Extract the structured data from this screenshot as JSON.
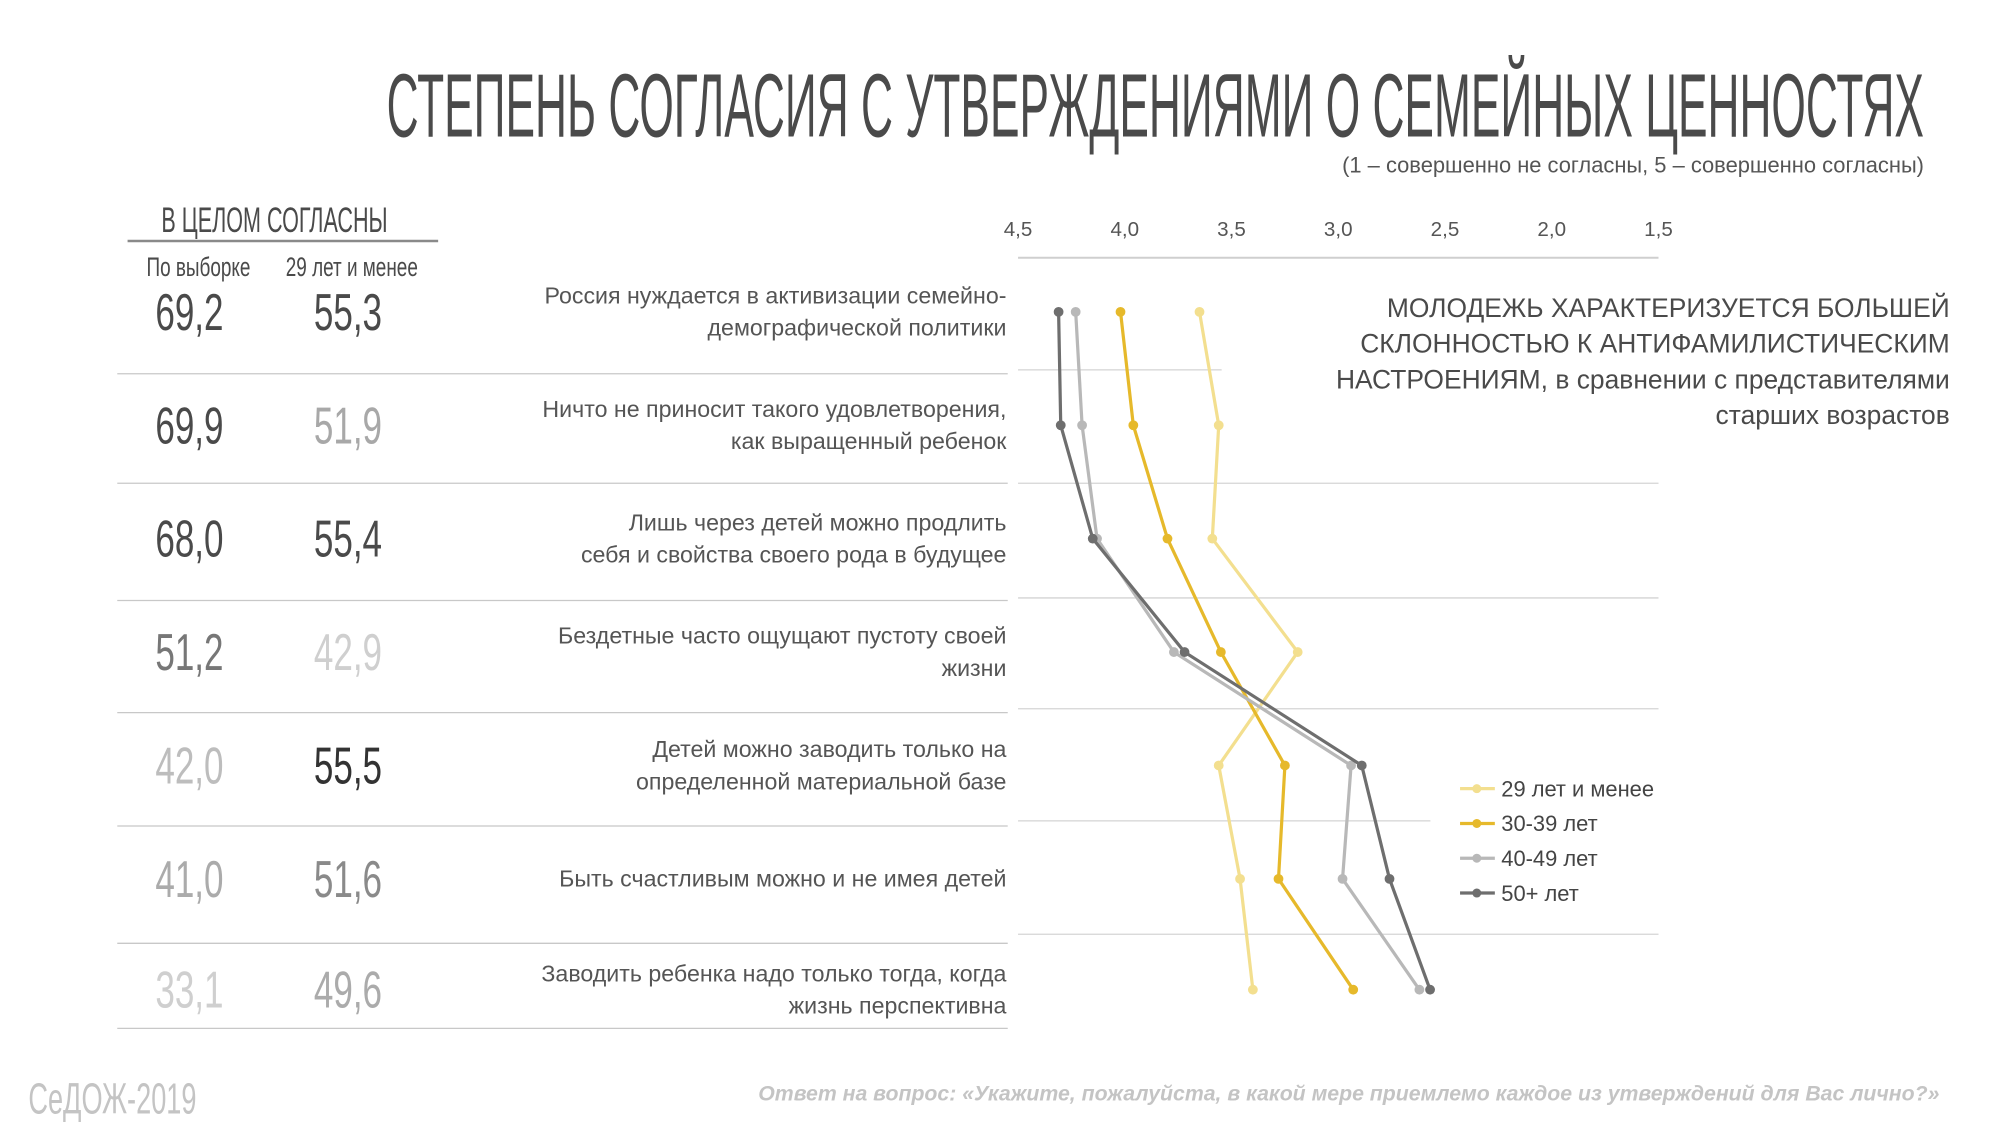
{
  "title": "СТЕПЕНЬ СОГЛАСИЯ С УТВЕРЖДЕНИЯМИ О СЕМЕЙНЫХ ЦЕННОСТЯХ",
  "subtitle": "(1 – совершенно не согласны,  5 – совершенно согласны)",
  "table": {
    "header": "В ЦЕЛОМ СОГЛАСНЫ",
    "columns": [
      "По выборке",
      "29 лет и менее"
    ],
    "rows": [
      [
        "69,2",
        "55,3"
      ],
      [
        "69,9",
        "51,9"
      ],
      [
        "68,0",
        "55,4"
      ],
      [
        "51,2",
        "42,9"
      ],
      [
        "42,0",
        "55,5"
      ],
      [
        "41,0",
        "51,6"
      ],
      [
        "33,1",
        "49,6"
      ]
    ],
    "colors": [
      [
        "#4a4a4a",
        "#4a4a4a"
      ],
      [
        "#4a4a4a",
        "#a8a8a8"
      ],
      [
        "#4a4a4a",
        "#4a4a4a"
      ],
      [
        "#777777",
        "#cfcfcf"
      ],
      [
        "#bdbdbd",
        "#333333"
      ],
      [
        "#ababab",
        "#8a8a8a"
      ],
      [
        "#cfcfcf",
        "#ababab"
      ]
    ]
  },
  "chart_data": {
    "type": "line",
    "categories": [
      [
        "Россия нуждается в активизации семейно-",
        "демографической политики"
      ],
      [
        "Ничто не приносит такого удовлетворения,",
        "как выращенный ребенок"
      ],
      [
        "Лишь через детей можно продлить",
        "себя и свойства своего рода в будущее"
      ],
      [
        "Бездетные часто ощущают пустоту своей",
        "жизни"
      ],
      [
        "Детей можно заводить только на",
        "определенной материальной базе"
      ],
      [
        "Быть счастливым можно и не имея детей"
      ],
      [
        "Заводить ребенка надо только тогда, когда",
        "жизнь перспективна"
      ]
    ],
    "xlim": [
      4.5,
      1.5
    ],
    "xticks": [
      {
        "value": 4.5,
        "label": "4,5"
      },
      {
        "value": 4,
        "label": "4,0"
      },
      {
        "value": 3.5,
        "label": "3,5"
      },
      {
        "value": 3,
        "label": "3,0"
      },
      {
        "value": 2.5,
        "label": "2,5"
      },
      {
        "value": 2,
        "label": "2,0"
      },
      {
        "value": 1.5,
        "label": "1,5"
      }
    ],
    "series": [
      {
        "name": "29 лет и менее",
        "color": "#f3df8f",
        "values": [
          3.65,
          3.56,
          3.59,
          3.19,
          3.56,
          3.46,
          3.4
        ]
      },
      {
        "name": "30-39 лет",
        "color": "#e6b92b",
        "values": [
          4.02,
          3.96,
          3.8,
          3.55,
          3.25,
          3.28,
          2.93
        ]
      },
      {
        "name": "40-49 лет",
        "color": "#b8b8b8",
        "values": [
          4.23,
          4.2,
          4.13,
          3.77,
          2.94,
          2.98,
          2.62
        ]
      },
      {
        "name": "50+ лет",
        "color": "#6e6e6e",
        "values": [
          4.31,
          4.3,
          4.15,
          3.72,
          2.89,
          2.76,
          2.57
        ]
      }
    ],
    "legend": "right",
    "annotation": [
      "МОЛОДЕЖЬ ХАРАКТЕРИЗУЕТСЯ БОЛЬШЕЙ",
      "СКЛОННОСТЬЮ К АНТИФАМИЛИСТИЧЕСКИМ",
      "НАСТРОЕНИЯМ, в сравнении с представителями",
      "старших возрастов"
    ]
  },
  "source": "СеДОЖ-2019",
  "footnote": "Ответ на вопрос: «Укажите, пожалуйста, в какой мере приемлемо каждое из утверждений для Вас лично?»"
}
